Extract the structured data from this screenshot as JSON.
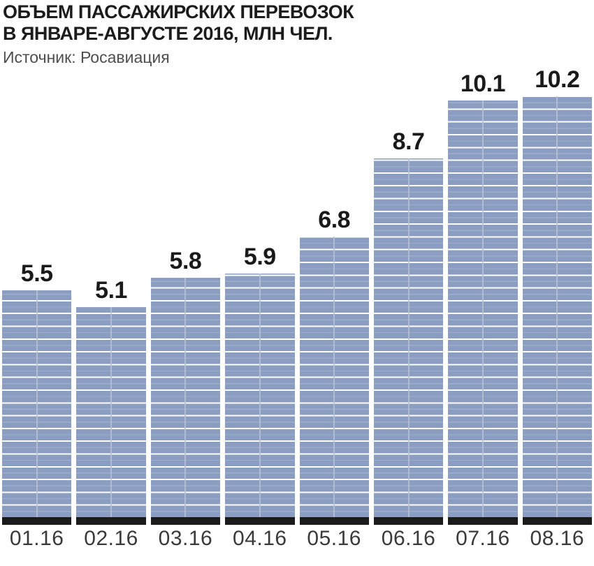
{
  "header": {
    "title_line1": "ОБЪЕМ ПАССАЖИРСКИХ ПЕРЕВОЗОК",
    "title_line2": "В ЯНВАРЕ-АВГУСТЕ 2016, МЛН ЧЕЛ.",
    "source": "Источник: Росавиация"
  },
  "chart_data": {
    "type": "bar",
    "title": "ОБЪЕМ ПАССАЖИРСКИХ ПЕРЕВОЗОК В ЯНВАРЕ-АВГУСТЕ 2016, МЛН ЧЕЛ.",
    "source": "Источник: Росавиация",
    "unit": "млн чел.",
    "categories": [
      "01.16",
      "02.16",
      "03.16",
      "04.16",
      "05.16",
      "06.16",
      "07.16",
      "08.16"
    ],
    "values": [
      5.5,
      5.1,
      5.8,
      5.9,
      6.8,
      8.7,
      10.1,
      10.2
    ],
    "xlabel": "",
    "ylabel": "",
    "ylim": [
      0,
      10.2
    ],
    "grid": false,
    "legend": false,
    "value_labels_shown": true,
    "colors": {
      "bar": "#8B9DC1",
      "bar_stripe": "#FFFFFF",
      "bar_center_line": "#B6C1D7",
      "base_strip": "#1B1B1B",
      "title_text": "#1C1C1C",
      "source_text": "#4E4E4E",
      "value_label": "#1A1A1A",
      "month_label": "#3A3A3A",
      "background": "#FFFFFF"
    }
  }
}
